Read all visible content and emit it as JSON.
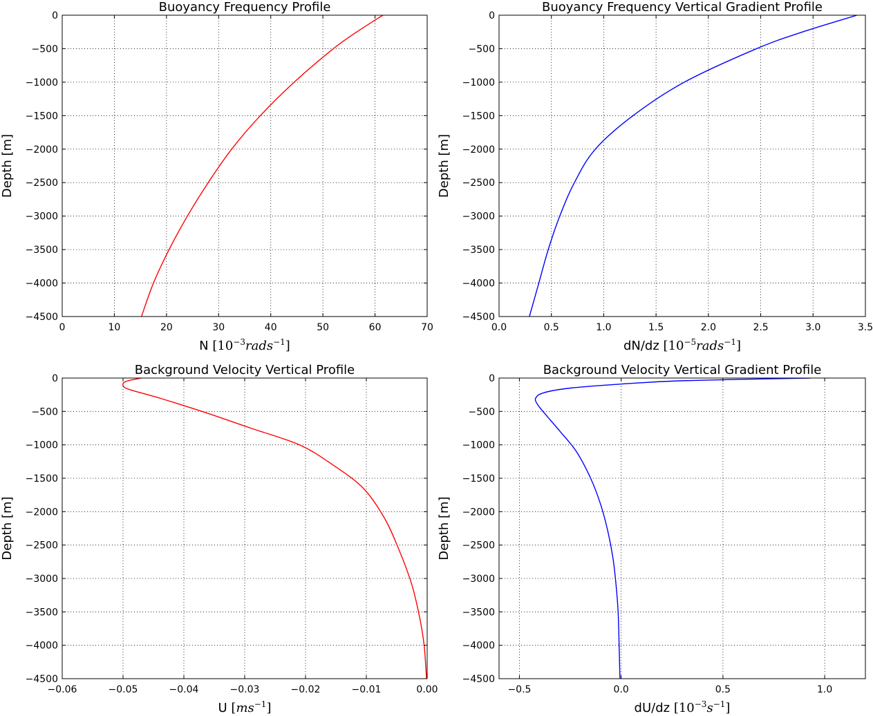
{
  "chart_data": [
    {
      "type": "line",
      "title": "Buoyancy Frequency Profile",
      "xlabel_parts": [
        {
          "t": "N ",
          "s": "text"
        },
        {
          "t": "[",
          "s": "up"
        },
        {
          "t": "10",
          "s": "up"
        },
        {
          "t": "−3",
          "s": "sup"
        },
        {
          "t": "rads",
          "s": "math"
        },
        {
          "t": "−1",
          "s": "sup"
        },
        {
          "t": "]",
          "s": "up"
        }
      ],
      "ylabel": "Depth [m]",
      "xlim": [
        0,
        70
      ],
      "ylim": [
        -4500,
        0
      ],
      "xticks": [
        0,
        10,
        20,
        30,
        40,
        50,
        60,
        70
      ],
      "xtick_labels": [
        "0",
        "10",
        "20",
        "30",
        "40",
        "50",
        "60",
        "70"
      ],
      "yticks": [
        0,
        -500,
        -1000,
        -1500,
        -2000,
        -2500,
        -3000,
        -3500,
        -4000,
        -4500
      ],
      "ytick_labels": [
        "0",
        "−500",
        "−1000",
        "−1500",
        "−2000",
        "−2500",
        "−3000",
        "−3500",
        "−4000",
        "−4500"
      ],
      "grid": true,
      "series": [
        {
          "color": "#ff0000",
          "points": [
            [
              61.5,
              0
            ],
            [
              56.5,
              -250
            ],
            [
              52,
              -500
            ],
            [
              44.5,
              -1000
            ],
            [
              38,
              -1500
            ],
            [
              32.5,
              -2000
            ],
            [
              28,
              -2500
            ],
            [
              24,
              -3000
            ],
            [
              20.5,
              -3500
            ],
            [
              17.5,
              -4000
            ],
            [
              15.2,
              -4500
            ]
          ]
        }
      ]
    },
    {
      "type": "line",
      "title": "Buoyancy Frequency Vertical Gradient Profile",
      "xlabel_parts": [
        {
          "t": "dN/dz ",
          "s": "text"
        },
        {
          "t": "[",
          "s": "up"
        },
        {
          "t": "10",
          "s": "up"
        },
        {
          "t": "−5",
          "s": "sup"
        },
        {
          "t": "rads",
          "s": "math"
        },
        {
          "t": "−1",
          "s": "sup"
        },
        {
          "t": "]",
          "s": "up"
        }
      ],
      "ylabel": "Depth [m]",
      "xlim": [
        0,
        3.5
      ],
      "ylim": [
        -4500,
        0
      ],
      "xticks": [
        0,
        0.5,
        1.0,
        1.5,
        2.0,
        2.5,
        3.0,
        3.5
      ],
      "xtick_labels": [
        "0.0",
        "0.5",
        "1.0",
        "1.5",
        "2.0",
        "2.5",
        "3.0",
        "3.5"
      ],
      "yticks": [
        0,
        -500,
        -1000,
        -1500,
        -2000,
        -2500,
        -3000,
        -3500,
        -4000,
        -4500
      ],
      "ytick_labels": [
        "0",
        "−500",
        "−1000",
        "−1500",
        "−2000",
        "−2500",
        "−3000",
        "−3500",
        "−4000",
        "−4500"
      ],
      "grid": true,
      "series": [
        {
          "color": "#0000ff",
          "points": [
            [
              3.42,
              0
            ],
            [
              2.9,
              -250
            ],
            [
              2.46,
              -500
            ],
            [
              1.77,
              -1000
            ],
            [
              1.28,
              -1500
            ],
            [
              0.92,
              -2000
            ],
            [
              0.72,
              -2500
            ],
            [
              0.58,
              -3000
            ],
            [
              0.47,
              -3500
            ],
            [
              0.38,
              -4000
            ],
            [
              0.29,
              -4500
            ]
          ]
        }
      ]
    },
    {
      "type": "line",
      "title": "Background Velocity Vertical Profile",
      "xlabel_parts": [
        {
          "t": "U  ",
          "s": "text"
        },
        {
          "t": "[",
          "s": "up"
        },
        {
          "t": "ms",
          "s": "math"
        },
        {
          "t": "−1",
          "s": "sup"
        },
        {
          "t": "]",
          "s": "up"
        }
      ],
      "ylabel": "Depth [m]",
      "xlim": [
        -0.06,
        0.0
      ],
      "ylim": [
        -4500,
        0
      ],
      "xticks": [
        -0.06,
        -0.05,
        -0.04,
        -0.03,
        -0.02,
        -0.01,
        0.0
      ],
      "xtick_labels": [
        "−0.06",
        "−0.05",
        "−0.04",
        "−0.03",
        "−0.02",
        "−0.01",
        "0.00"
      ],
      "yticks": [
        0,
        -500,
        -1000,
        -1500,
        -2000,
        -2500,
        -3000,
        -3500,
        -4000,
        -4500
      ],
      "ytick_labels": [
        "0",
        "−500",
        "−1000",
        "−1500",
        "−2000",
        "−2500",
        "−3000",
        "−3500",
        "−4000",
        "−4500"
      ],
      "grid": true,
      "series": [
        {
          "color": "#ff0000",
          "points": [
            [
              -0.047,
              0
            ],
            [
              -0.0495,
              -50
            ],
            [
              -0.05,
              -110
            ],
            [
              -0.049,
              -170
            ],
            [
              -0.044,
              -300
            ],
            [
              -0.037,
              -500
            ],
            [
              -0.029,
              -750
            ],
            [
              -0.021,
              -1000
            ],
            [
              -0.0155,
              -1300
            ],
            [
              -0.0105,
              -1650
            ],
            [
              -0.007,
              -2100
            ],
            [
              -0.0045,
              -2600
            ],
            [
              -0.0025,
              -3100
            ],
            [
              -0.0012,
              -3600
            ],
            [
              -0.0005,
              -4000
            ],
            [
              -0.0001,
              -4500
            ]
          ]
        }
      ]
    },
    {
      "type": "line",
      "title": "Background Velocity Vertical Gradient Profile",
      "xlabel_parts": [
        {
          "t": "dU/dz  ",
          "s": "text"
        },
        {
          "t": "[",
          "s": "up"
        },
        {
          "t": "10",
          "s": "up"
        },
        {
          "t": "−3",
          "s": "sup"
        },
        {
          "t": "s",
          "s": "math"
        },
        {
          "t": "−1",
          "s": "sup"
        },
        {
          "t": "]",
          "s": "up"
        }
      ],
      "ylabel": "Depth [m]",
      "xlim": [
        -0.6,
        1.2
      ],
      "ylim": [
        -4500,
        0
      ],
      "xticks": [
        -0.5,
        0.0,
        0.5,
        1.0
      ],
      "xtick_labels": [
        "−0.5",
        "0.0",
        "0.5",
        "1.0"
      ],
      "yticks": [
        0,
        -500,
        -1000,
        -1500,
        -2000,
        -2500,
        -3000,
        -3500,
        -4000,
        -4500
      ],
      "ytick_labels": [
        "0",
        "−500",
        "−1000",
        "−1500",
        "−2000",
        "−2500",
        "−3000",
        "−3500",
        "−4000",
        "−4500"
      ],
      "grid": true,
      "series": [
        {
          "color": "#0000ff",
          "points": [
            [
              0.93,
              0
            ],
            [
              0.3,
              -40
            ],
            [
              0.0,
              -90
            ],
            [
              -0.25,
              -150
            ],
            [
              -0.38,
              -220
            ],
            [
              -0.42,
              -300
            ],
            [
              -0.41,
              -400
            ],
            [
              -0.37,
              -550
            ],
            [
              -0.3,
              -800
            ],
            [
              -0.22,
              -1100
            ],
            [
              -0.15,
              -1500
            ],
            [
              -0.1,
              -1900
            ],
            [
              -0.065,
              -2300
            ],
            [
              -0.04,
              -2700
            ],
            [
              -0.025,
              -3100
            ],
            [
              -0.015,
              -3500
            ],
            [
              -0.01,
              -4000
            ],
            [
              -0.006,
              -4500
            ]
          ]
        }
      ]
    }
  ]
}
